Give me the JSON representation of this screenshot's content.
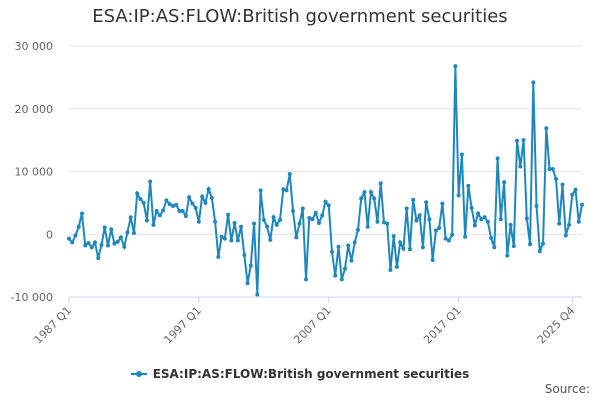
{
  "title": "ESA:IP:AS:FLOW:British government securities",
  "source_label": "Source:",
  "chart_data": {
    "type": "line",
    "title": "ESA:IP:AS:FLOW:British government securities",
    "xlabel": "",
    "ylabel": "",
    "ylim": [
      -10000,
      30000
    ],
    "yticks": [
      -10000,
      0,
      10000,
      20000,
      30000
    ],
    "ytick_labels": [
      "-10 000",
      "0",
      "10 000",
      "20 000",
      "30 000"
    ],
    "xtick_labels": [
      "1987 Q1",
      "1997 Q1",
      "2007 Q1",
      "2017 Q1",
      "2025 Q4"
    ],
    "xtick_index": [
      0,
      40,
      80,
      120,
      155
    ],
    "legend": "ESA:IP:AS:FLOW:British government securities",
    "color": "#1f87bb",
    "series": [
      {
        "name": "ESA:IP:AS:FLOW:British government securities",
        "values": [
          -700,
          -1300,
          -200,
          1200,
          3300,
          -1800,
          -1400,
          -2100,
          -1300,
          -3800,
          -1700,
          1100,
          -1800,
          800,
          -1500,
          -1200,
          -500,
          -2000,
          300,
          2700,
          200,
          6500,
          5600,
          5000,
          2200,
          8400,
          1500,
          3700,
          3000,
          3800,
          5400,
          4800,
          4500,
          4700,
          3700,
          3700,
          2900,
          5900,
          4900,
          4200,
          2000,
          6000,
          5000,
          7200,
          5800,
          2000,
          -3600,
          -400,
          -700,
          3100,
          -1000,
          1800,
          -1000,
          1200,
          -3300,
          -7800,
          -5000,
          1700,
          -9600,
          7000,
          2300,
          1200,
          -900,
          2700,
          1500,
          2300,
          7200,
          7000,
          9600,
          3700,
          -500,
          1700,
          4100,
          -7200,
          2600,
          2400,
          3400,
          1800,
          3000,
          5200,
          4600,
          -2800,
          -6600,
          -2000,
          -7200,
          -5500,
          -1800,
          -4200,
          -1300,
          700,
          5700,
          6700,
          1200,
          6700,
          5700,
          2000,
          8100,
          1900,
          1700,
          -5700,
          -300,
          -5200,
          -1300,
          -2300,
          4100,
          -2400,
          5500,
          2200,
          3000,
          -2100,
          5100,
          2400,
          -4100,
          600,
          1000,
          4900,
          -700,
          -1000,
          -100,
          26800,
          6200,
          12700,
          -400,
          7700,
          4200,
          1400,
          3300,
          2400,
          2700,
          2000,
          -600,
          -2100,
          12100,
          2400,
          8300,
          -3400,
          1500,
          -1900,
          14900,
          10800,
          15000,
          2500,
          -1600,
          24200,
          4500,
          -2700,
          -1500,
          16900,
          10400,
          10400,
          8800,
          1700,
          7900,
          -200,
          1500,
          6300,
          7100,
          2000,
          4700
        ]
      }
    ]
  }
}
